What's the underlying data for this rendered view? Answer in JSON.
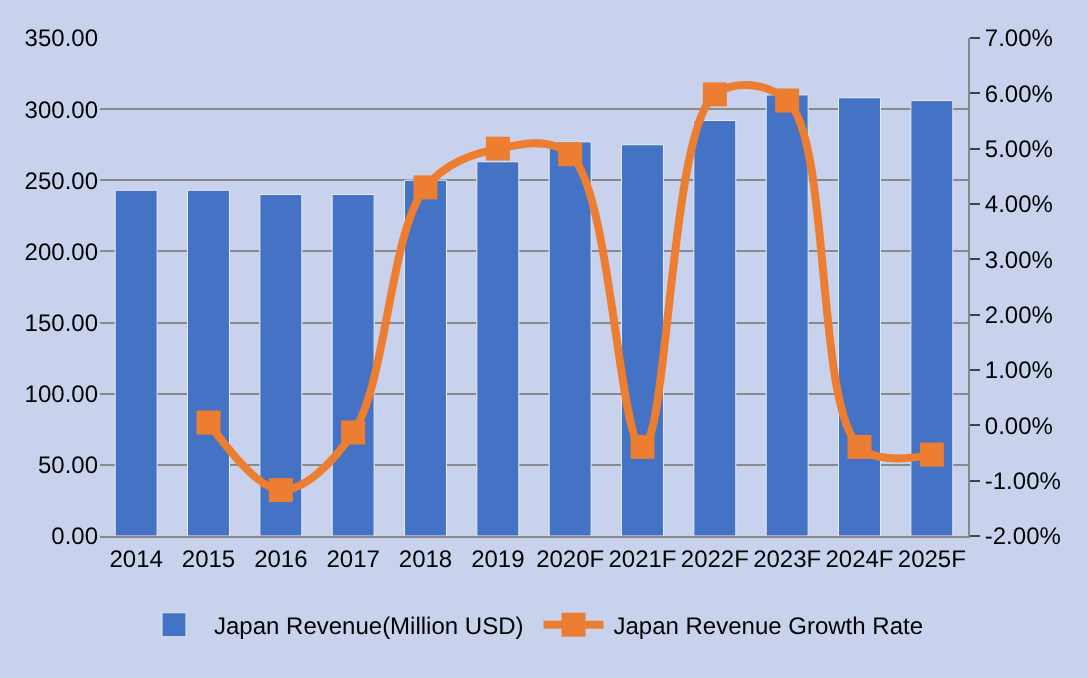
{
  "chart_data": {
    "type": "bar",
    "categories": [
      "2014",
      "2015",
      "2016",
      "2017",
      "2018",
      "2019",
      "2020F",
      "2021F",
      "2022F",
      "2023F",
      "2024F",
      "2025F"
    ],
    "series": [
      {
        "name": "Japan Revenue(Million USD)",
        "color": "#4472c4",
        "values": [
          243,
          243,
          240,
          240,
          250,
          263,
          277,
          275,
          292,
          310,
          308,
          306
        ]
      },
      {
        "name": "Japan Revenue Growth Rate",
        "type": "line",
        "axis": "y2",
        "color": "#ed7d31",
        "marker": "square",
        "values": [
          null,
          0.05,
          -1.17,
          -0.13,
          4.3,
          5.0,
          4.9,
          -0.39,
          5.98,
          5.87,
          -0.39,
          -0.53
        ]
      }
    ],
    "ylim": [
      0,
      350
    ],
    "yticks": [
      {
        "value": 0,
        "label": "0.00"
      },
      {
        "value": 50,
        "label": "50.00"
      },
      {
        "value": 100,
        "label": "100.00"
      },
      {
        "value": 150,
        "label": "150.00"
      },
      {
        "value": 200,
        "label": "200.00"
      },
      {
        "value": 250,
        "label": "250.00"
      },
      {
        "value": 300,
        "label": "300.00"
      },
      {
        "value": 350,
        "label": "350.00"
      }
    ],
    "y2lim": [
      -2,
      7
    ],
    "y2ticks": [
      {
        "value": -2,
        "label": "-2.00%"
      },
      {
        "value": -1,
        "label": "-1.00%"
      },
      {
        "value": 0,
        "label": "0.00%"
      },
      {
        "value": 1,
        "label": "1.00%"
      },
      {
        "value": 2,
        "label": "2.00%"
      },
      {
        "value": 3,
        "label": "3.00%"
      },
      {
        "value": 4,
        "label": "4.00%"
      },
      {
        "value": 5,
        "label": "5.00%"
      },
      {
        "value": 6,
        "label": "6.00%"
      },
      {
        "value": 7,
        "label": "7.00%"
      }
    ],
    "grid": "y",
    "legend": "bottom"
  }
}
